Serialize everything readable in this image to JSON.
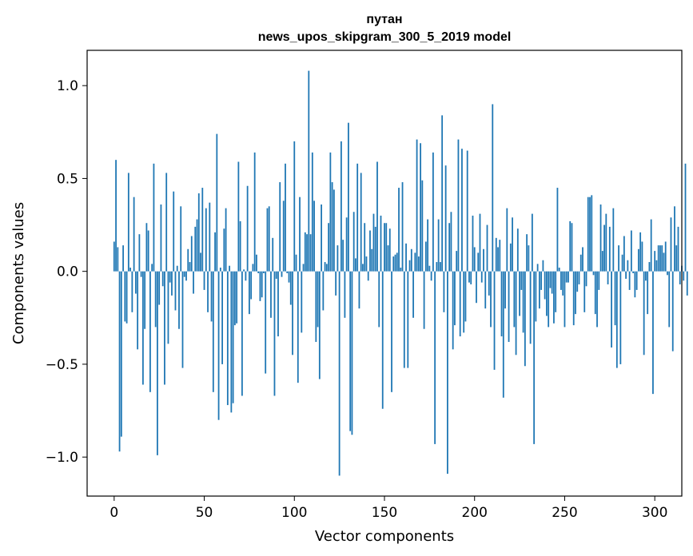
{
  "chart_data": {
    "type": "bar",
    "title": "путан",
    "subtitle": "news_upos_skipgram_300_5_2019 model",
    "xlabel": "Vector components",
    "ylabel": "Components values",
    "xlim": [
      -15,
      315
    ],
    "ylim": [
      -1.21,
      1.19
    ],
    "xticks": [
      0,
      50,
      100,
      150,
      200,
      250,
      300
    ],
    "yticks": [
      -1.0,
      -0.5,
      0.0,
      0.5,
      1.0
    ],
    "xtick_labels": [
      "0",
      "50",
      "100",
      "150",
      "200",
      "250",
      "300"
    ],
    "ytick_labels": [
      "−1.0",
      "−0.5",
      "0.0",
      "0.5",
      "1.0"
    ],
    "bar_color": "#1f77b4",
    "values": [
      0.16,
      0.6,
      0.13,
      -0.97,
      -0.89,
      0.14,
      -0.27,
      -0.28,
      0.53,
      0.02,
      -0.22,
      0.4,
      -0.12,
      -0.42,
      0.2,
      -0.03,
      -0.61,
      -0.31,
      0.26,
      0.22,
      -0.65,
      0.04,
      0.58,
      -0.3,
      -0.99,
      -0.18,
      0.36,
      -0.08,
      -0.61,
      0.53,
      -0.39,
      -0.06,
      -0.13,
      0.43,
      -0.21,
      0.03,
      -0.31,
      0.35,
      -0.52,
      -0.03,
      -0.05,
      0.12,
      0.05,
      0.19,
      -0.12,
      0.24,
      0.28,
      0.42,
      0.1,
      0.45,
      -0.1,
      0.34,
      -0.22,
      0.37,
      -0.27,
      -0.65,
      0.21,
      0.74,
      -0.8,
      0.02,
      -0.5,
      0.23,
      0.34,
      -0.72,
      0.03,
      -0.76,
      -0.71,
      -0.29,
      -0.28,
      0.59,
      0.27,
      -0.67,
      0.01,
      -0.05,
      0.46,
      -0.23,
      -0.15,
      0.04,
      0.64,
      0.09,
      -0.01,
      -0.16,
      -0.14,
      -0.01,
      -0.55,
      0.34,
      0.35,
      -0.25,
      0.18,
      -0.67,
      -0.04,
      -0.35,
      0.48,
      -0.03,
      0.38,
      0.58,
      -0.01,
      -0.06,
      -0.18,
      -0.45,
      0.7,
      0.09,
      -0.6,
      0.4,
      -0.33,
      0.04,
      0.21,
      0.2,
      1.08,
      0.2,
      0.64,
      0.38,
      -0.38,
      -0.3,
      -0.58,
      0.36,
      -0.21,
      0.05,
      0.04,
      0.26,
      0.64,
      0.48,
      0.44,
      -0.13,
      0.14,
      -1.1,
      0.7,
      0.17,
      -0.25,
      0.29,
      0.8,
      -0.86,
      -0.88,
      0.32,
      0.07,
      0.58,
      -0.2,
      0.53,
      0.04,
      0.26,
      0.08,
      -0.05,
      0.22,
      0.12,
      0.31,
      0.24,
      0.59,
      -0.3,
      0.3,
      -0.74,
      0.26,
      0.26,
      0.14,
      0.23,
      -0.65,
      0.08,
      0.09,
      0.1,
      0.45,
      0.02,
      0.48,
      -0.52,
      0.15,
      -0.52,
      0.06,
      0.12,
      -0.25,
      0.1,
      0.71,
      0.08,
      0.69,
      0.49,
      -0.31,
      0.16,
      0.28,
      0.03,
      -0.05,
      0.64,
      -0.93,
      0.05,
      0.28,
      0.05,
      0.84,
      -0.22,
      0.57,
      -1.09,
      0.26,
      0.32,
      -0.42,
      -0.29,
      0.11,
      0.71,
      -0.35,
      0.66,
      -0.33,
      -0.27,
      0.65,
      -0.06,
      -0.07,
      0.3,
      0.13,
      -0.17,
      0.1,
      0.31,
      -0.06,
      0.12,
      -0.2,
      0.25,
      -0.13,
      -0.3,
      0.9,
      -0.53,
      0.18,
      0.13,
      0.17,
      -0.35,
      -0.68,
      -0.2,
      0.34,
      -0.38,
      0.15,
      0.29,
      -0.3,
      -0.45,
      0.23,
      -0.24,
      -0.1,
      -0.33,
      -0.51,
      0.2,
      0.14,
      -0.39,
      0.31,
      -0.93,
      -0.27,
      0.04,
      -0.2,
      -0.1,
      0.06,
      -0.15,
      -0.24,
      -0.3,
      -0.09,
      -0.12,
      -0.28,
      -0.22,
      0.45,
      0.02,
      -0.1,
      -0.13,
      -0.3,
      -0.06,
      -0.06,
      0.27,
      0.26,
      -0.29,
      -0.23,
      -0.11,
      -0.07,
      0.09,
      0.13,
      -0.22,
      -0.08,
      0.4,
      0.4,
      0.41,
      -0.02,
      -0.23,
      -0.3,
      -0.1,
      0.36,
      0.11,
      0.25,
      0.31,
      -0.07,
      0.24,
      -0.41,
      0.34,
      -0.29,
      -0.52,
      0.14,
      -0.5,
      0.09,
      0.19,
      -0.04,
      0.06,
      -0.1,
      0.22,
      -0.01,
      -0.14,
      -0.1,
      0.12,
      0.21,
      0.16,
      -0.45,
      -0.05,
      -0.23,
      0.05,
      0.28,
      -0.66,
      0.11,
      0.06,
      0.14,
      0.14,
      0.14,
      0.1,
      0.16,
      -0.02,
      -0.3,
      0.29,
      -0.43,
      0.35,
      0.14,
      0.24,
      -0.07,
      0.03,
      -0.05,
      0.58,
      -0.13
    ]
  }
}
